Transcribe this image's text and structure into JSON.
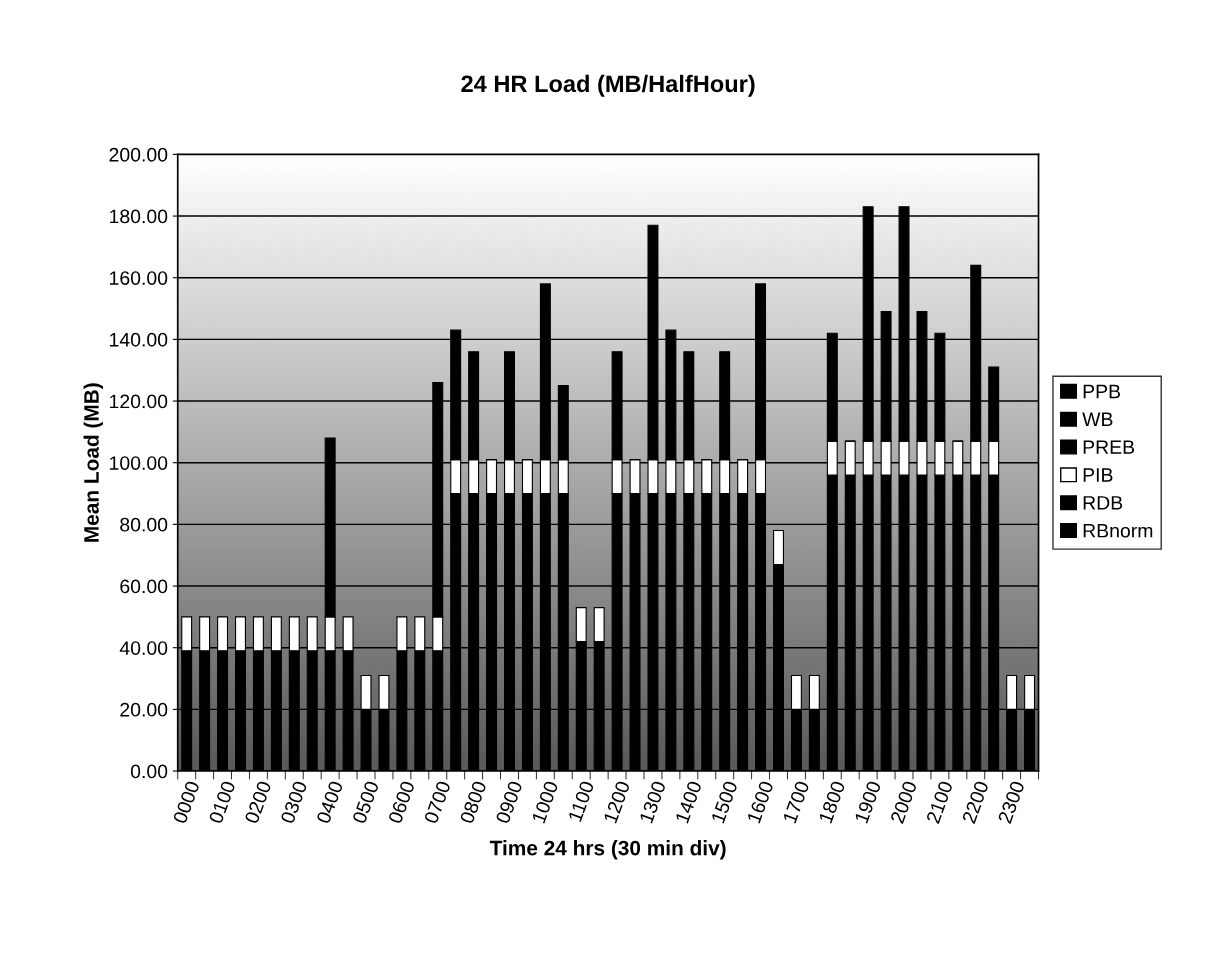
{
  "chart_data": {
    "type": "bar",
    "title": "24 HR Load (MB/HalfHour)",
    "xlabel": "Time 24 hrs (30 min div)",
    "ylabel": "Mean Load (MB)",
    "categories": [
      "0000",
      null,
      "0100",
      null,
      "0200",
      null,
      "0300",
      null,
      "0400",
      null,
      "0500",
      null,
      "0600",
      null,
      "0700",
      null,
      "0800",
      null,
      "0900",
      null,
      "1000",
      null,
      "1100",
      null,
      "1200",
      null,
      "1300",
      null,
      "1400",
      null,
      "1500",
      null,
      "1600",
      null,
      "1700",
      null,
      "1800",
      null,
      "1900",
      null,
      "2000",
      null,
      "2100",
      null,
      "2200",
      null,
      "2300",
      null
    ],
    "stacked": true,
    "series": [
      {
        "name": "RBnorm",
        "color": "#000000",
        "values": [
          39,
          39,
          39,
          39,
          39,
          39,
          39,
          39,
          39,
          39,
          20,
          20,
          39,
          39,
          39,
          90,
          90,
          90,
          90,
          90,
          90,
          90,
          42,
          42,
          90,
          90,
          90,
          90,
          90,
          90,
          90,
          90,
          90,
          67,
          20,
          20,
          96,
          96,
          96,
          96,
          96,
          96,
          96,
          96,
          96,
          96,
          20,
          20
        ]
      },
      {
        "name": "RDB",
        "color": "#000000",
        "values": [
          null,
          null,
          null,
          null,
          null,
          null,
          null,
          null,
          null,
          null,
          null,
          null,
          null,
          null,
          null,
          null,
          null,
          null,
          null,
          null,
          null,
          null,
          null,
          null,
          null,
          null,
          null,
          null,
          null,
          null,
          null,
          null,
          null,
          null,
          null,
          null,
          null,
          null,
          null,
          null,
          null,
          null,
          null,
          null,
          null,
          null,
          null,
          null
        ]
      },
      {
        "name": "PIB",
        "color": "#ffffff",
        "values": [
          11,
          11,
          11,
          11,
          11,
          11,
          11,
          11,
          11,
          11,
          11,
          11,
          11,
          11,
          11,
          11,
          11,
          11,
          11,
          11,
          11,
          11,
          11,
          11,
          11,
          11,
          11,
          11,
          11,
          11,
          11,
          11,
          11,
          11,
          11,
          11,
          11,
          11,
          11,
          11,
          11,
          11,
          11,
          11,
          11,
          11,
          11,
          11
        ]
      },
      {
        "name": "PREB",
        "color": "#000000",
        "values": [
          null,
          null,
          null,
          null,
          null,
          null,
          null,
          null,
          58,
          null,
          null,
          null,
          null,
          null,
          76,
          42,
          35,
          0,
          35,
          0,
          57,
          24,
          null,
          null,
          35,
          0,
          76,
          42,
          35,
          0,
          35,
          0,
          57,
          null,
          null,
          null,
          35,
          0,
          76,
          42,
          76,
          42,
          35,
          0,
          57,
          24,
          null,
          null
        ]
      },
      {
        "name": "WB",
        "color": "#000000",
        "values": [
          null,
          null,
          null,
          null,
          null,
          null,
          null,
          null,
          null,
          null,
          null,
          null,
          null,
          null,
          null,
          null,
          null,
          null,
          null,
          null,
          null,
          null,
          null,
          null,
          null,
          null,
          null,
          null,
          null,
          null,
          null,
          null,
          null,
          null,
          null,
          null,
          null,
          null,
          null,
          null,
          null,
          null,
          null,
          null,
          null,
          null,
          null,
          null
        ]
      },
      {
        "name": "PPB",
        "color": "#000000",
        "values": [
          null,
          null,
          null,
          null,
          null,
          null,
          null,
          null,
          null,
          null,
          null,
          null,
          null,
          null,
          null,
          null,
          null,
          null,
          null,
          null,
          null,
          null,
          null,
          null,
          null,
          null,
          null,
          null,
          null,
          null,
          null,
          null,
          null,
          null,
          null,
          null,
          null,
          null,
          null,
          null,
          null,
          null,
          null,
          null,
          null,
          null,
          null,
          null
        ]
      }
    ],
    "ylim": [
      0,
      200
    ],
    "yticks": [
      {
        "value": 0,
        "label": "0.00"
      },
      {
        "value": 20,
        "label": "20.00"
      },
      {
        "value": 40,
        "label": "40.00"
      },
      {
        "value": 60,
        "label": "60.00"
      },
      {
        "value": 80,
        "label": "80.00"
      },
      {
        "value": 100,
        "label": "100.00"
      },
      {
        "value": 120,
        "label": "120.00"
      },
      {
        "value": 140,
        "label": "140.00"
      },
      {
        "value": 160,
        "label": "160.00"
      },
      {
        "value": 180,
        "label": "180.00"
      },
      {
        "value": 200,
        "label": "200.00"
      }
    ],
    "grid": "y",
    "legend": "right"
  }
}
